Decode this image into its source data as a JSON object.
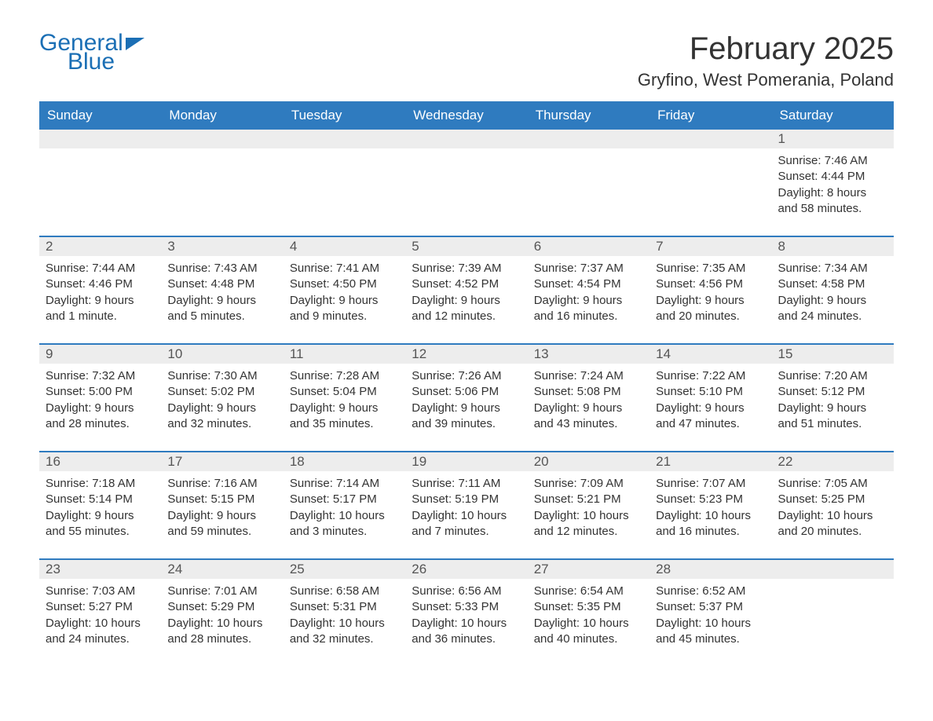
{
  "brand": {
    "part1": "General",
    "part2": "Blue"
  },
  "title": "February 2025",
  "location": "Gryfino, West Pomerania, Poland",
  "colors": {
    "header_bg": "#2f7bbf",
    "header_text": "#ffffff",
    "band_bg": "#ededed",
    "rule": "#2f7bbf",
    "body_text": "#333333",
    "brand_blue": "#1b6fb5"
  },
  "days_of_week": [
    "Sunday",
    "Monday",
    "Tuesday",
    "Wednesday",
    "Thursday",
    "Friday",
    "Saturday"
  ],
  "weeks": [
    [
      {
        "n": "",
        "sunrise": "",
        "sunset": "",
        "daylight": ""
      },
      {
        "n": "",
        "sunrise": "",
        "sunset": "",
        "daylight": ""
      },
      {
        "n": "",
        "sunrise": "",
        "sunset": "",
        "daylight": ""
      },
      {
        "n": "",
        "sunrise": "",
        "sunset": "",
        "daylight": ""
      },
      {
        "n": "",
        "sunrise": "",
        "sunset": "",
        "daylight": ""
      },
      {
        "n": "",
        "sunrise": "",
        "sunset": "",
        "daylight": ""
      },
      {
        "n": "1",
        "sunrise": "Sunrise: 7:46 AM",
        "sunset": "Sunset: 4:44 PM",
        "daylight": "Daylight: 8 hours and 58 minutes."
      }
    ],
    [
      {
        "n": "2",
        "sunrise": "Sunrise: 7:44 AM",
        "sunset": "Sunset: 4:46 PM",
        "daylight": "Daylight: 9 hours and 1 minute."
      },
      {
        "n": "3",
        "sunrise": "Sunrise: 7:43 AM",
        "sunset": "Sunset: 4:48 PM",
        "daylight": "Daylight: 9 hours and 5 minutes."
      },
      {
        "n": "4",
        "sunrise": "Sunrise: 7:41 AM",
        "sunset": "Sunset: 4:50 PM",
        "daylight": "Daylight: 9 hours and 9 minutes."
      },
      {
        "n": "5",
        "sunrise": "Sunrise: 7:39 AM",
        "sunset": "Sunset: 4:52 PM",
        "daylight": "Daylight: 9 hours and 12 minutes."
      },
      {
        "n": "6",
        "sunrise": "Sunrise: 7:37 AM",
        "sunset": "Sunset: 4:54 PM",
        "daylight": "Daylight: 9 hours and 16 minutes."
      },
      {
        "n": "7",
        "sunrise": "Sunrise: 7:35 AM",
        "sunset": "Sunset: 4:56 PM",
        "daylight": "Daylight: 9 hours and 20 minutes."
      },
      {
        "n": "8",
        "sunrise": "Sunrise: 7:34 AM",
        "sunset": "Sunset: 4:58 PM",
        "daylight": "Daylight: 9 hours and 24 minutes."
      }
    ],
    [
      {
        "n": "9",
        "sunrise": "Sunrise: 7:32 AM",
        "sunset": "Sunset: 5:00 PM",
        "daylight": "Daylight: 9 hours and 28 minutes."
      },
      {
        "n": "10",
        "sunrise": "Sunrise: 7:30 AM",
        "sunset": "Sunset: 5:02 PM",
        "daylight": "Daylight: 9 hours and 32 minutes."
      },
      {
        "n": "11",
        "sunrise": "Sunrise: 7:28 AM",
        "sunset": "Sunset: 5:04 PM",
        "daylight": "Daylight: 9 hours and 35 minutes."
      },
      {
        "n": "12",
        "sunrise": "Sunrise: 7:26 AM",
        "sunset": "Sunset: 5:06 PM",
        "daylight": "Daylight: 9 hours and 39 minutes."
      },
      {
        "n": "13",
        "sunrise": "Sunrise: 7:24 AM",
        "sunset": "Sunset: 5:08 PM",
        "daylight": "Daylight: 9 hours and 43 minutes."
      },
      {
        "n": "14",
        "sunrise": "Sunrise: 7:22 AM",
        "sunset": "Sunset: 5:10 PM",
        "daylight": "Daylight: 9 hours and 47 minutes."
      },
      {
        "n": "15",
        "sunrise": "Sunrise: 7:20 AM",
        "sunset": "Sunset: 5:12 PM",
        "daylight": "Daylight: 9 hours and 51 minutes."
      }
    ],
    [
      {
        "n": "16",
        "sunrise": "Sunrise: 7:18 AM",
        "sunset": "Sunset: 5:14 PM",
        "daylight": "Daylight: 9 hours and 55 minutes."
      },
      {
        "n": "17",
        "sunrise": "Sunrise: 7:16 AM",
        "sunset": "Sunset: 5:15 PM",
        "daylight": "Daylight: 9 hours and 59 minutes."
      },
      {
        "n": "18",
        "sunrise": "Sunrise: 7:14 AM",
        "sunset": "Sunset: 5:17 PM",
        "daylight": "Daylight: 10 hours and 3 minutes."
      },
      {
        "n": "19",
        "sunrise": "Sunrise: 7:11 AM",
        "sunset": "Sunset: 5:19 PM",
        "daylight": "Daylight: 10 hours and 7 minutes."
      },
      {
        "n": "20",
        "sunrise": "Sunrise: 7:09 AM",
        "sunset": "Sunset: 5:21 PM",
        "daylight": "Daylight: 10 hours and 12 minutes."
      },
      {
        "n": "21",
        "sunrise": "Sunrise: 7:07 AM",
        "sunset": "Sunset: 5:23 PM",
        "daylight": "Daylight: 10 hours and 16 minutes."
      },
      {
        "n": "22",
        "sunrise": "Sunrise: 7:05 AM",
        "sunset": "Sunset: 5:25 PM",
        "daylight": "Daylight: 10 hours and 20 minutes."
      }
    ],
    [
      {
        "n": "23",
        "sunrise": "Sunrise: 7:03 AM",
        "sunset": "Sunset: 5:27 PM",
        "daylight": "Daylight: 10 hours and 24 minutes."
      },
      {
        "n": "24",
        "sunrise": "Sunrise: 7:01 AM",
        "sunset": "Sunset: 5:29 PM",
        "daylight": "Daylight: 10 hours and 28 minutes."
      },
      {
        "n": "25",
        "sunrise": "Sunrise: 6:58 AM",
        "sunset": "Sunset: 5:31 PM",
        "daylight": "Daylight: 10 hours and 32 minutes."
      },
      {
        "n": "26",
        "sunrise": "Sunrise: 6:56 AM",
        "sunset": "Sunset: 5:33 PM",
        "daylight": "Daylight: 10 hours and 36 minutes."
      },
      {
        "n": "27",
        "sunrise": "Sunrise: 6:54 AM",
        "sunset": "Sunset: 5:35 PM",
        "daylight": "Daylight: 10 hours and 40 minutes."
      },
      {
        "n": "28",
        "sunrise": "Sunrise: 6:52 AM",
        "sunset": "Sunset: 5:37 PM",
        "daylight": "Daylight: 10 hours and 45 minutes."
      },
      {
        "n": "",
        "sunrise": "",
        "sunset": "",
        "daylight": ""
      }
    ]
  ]
}
